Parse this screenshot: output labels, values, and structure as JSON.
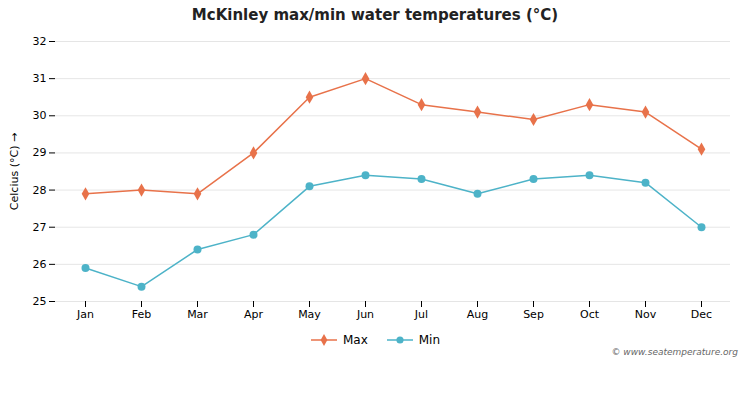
{
  "chart_data": {
    "type": "line",
    "title": "McKinley max/min water temperatures (°C)",
    "ylabel": "Celcius (°C)",
    "categories": [
      "Jan",
      "Feb",
      "Mar",
      "Apr",
      "May",
      "Jun",
      "Jul",
      "Aug",
      "Sep",
      "Oct",
      "Nov",
      "Dec"
    ],
    "series": [
      {
        "name": "Max",
        "color": "#e8724a",
        "marker": "diamond",
        "values": [
          27.9,
          28.0,
          27.9,
          29.0,
          30.5,
          31.0,
          30.3,
          30.1,
          29.9,
          30.3,
          30.1,
          29.1
        ]
      },
      {
        "name": "Min",
        "color": "#4db3c8",
        "marker": "circle",
        "values": [
          25.9,
          25.4,
          26.4,
          26.8,
          28.1,
          28.4,
          28.3,
          27.9,
          28.3,
          28.4,
          28.2,
          27.0
        ]
      }
    ],
    "ylim": [
      25.0,
      32.0
    ],
    "yticks": [
      25,
      26,
      27,
      28,
      29,
      30,
      31,
      32
    ],
    "grid": true,
    "legend": "bottom",
    "annotations": [
      "© www.seatemperature.org"
    ]
  }
}
